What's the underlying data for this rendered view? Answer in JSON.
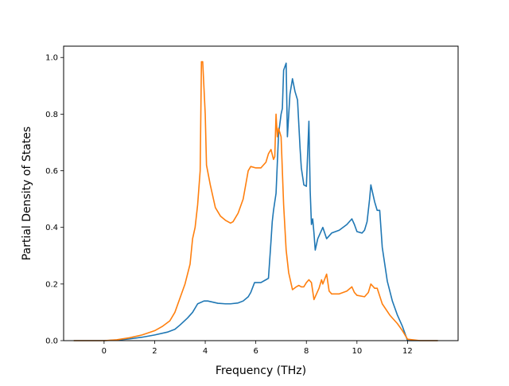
{
  "chart_data": {
    "type": "line",
    "title": "",
    "xlabel": "Frequency (THz)",
    "ylabel": "Partial Density of States",
    "xlim": [
      -1.6,
      14.0
    ],
    "ylim": [
      0.0,
      1.04
    ],
    "xticks": [
      0,
      2,
      4,
      6,
      8,
      10,
      12
    ],
    "yticks": [
      0.0,
      0.2,
      0.4,
      0.6,
      0.8,
      1.0
    ],
    "xtick_labels": [
      "0",
      "2",
      "4",
      "6",
      "8",
      "10",
      "12"
    ],
    "ytick_labels": [
      "0.0",
      "0.2",
      "0.4",
      "0.6",
      "0.8",
      "1.0"
    ],
    "grid": false,
    "legend": null,
    "series": [
      {
        "color": "#1f77b4",
        "x": [
          -1.2,
          0.0,
          0.5,
          1.0,
          1.5,
          2.0,
          2.5,
          2.8,
          3.0,
          3.3,
          3.5,
          3.7,
          3.95,
          4.1,
          4.5,
          4.8,
          5.0,
          5.3,
          5.5,
          5.7,
          5.8,
          5.95,
          6.2,
          6.4,
          6.5,
          6.6,
          6.65,
          6.7,
          6.8,
          6.9,
          7.0,
          7.05,
          7.1,
          7.2,
          7.25,
          7.35,
          7.45,
          7.55,
          7.65,
          7.75,
          7.8,
          7.9,
          8.0,
          8.1,
          8.15,
          8.2,
          8.25,
          8.3,
          8.35,
          8.45,
          8.55,
          8.65,
          8.8,
          9.0,
          9.3,
          9.6,
          9.8,
          9.9,
          10.0,
          10.2,
          10.3,
          10.4,
          10.5,
          10.55,
          10.7,
          10.8,
          10.9,
          11.0,
          11.2,
          11.4,
          11.6,
          11.8,
          12.0,
          12.5,
          13.2
        ],
        "y": [
          0.0,
          0.0,
          0.002,
          0.006,
          0.012,
          0.02,
          0.03,
          0.04,
          0.055,
          0.08,
          0.1,
          0.13,
          0.14,
          0.14,
          0.132,
          0.13,
          0.13,
          0.133,
          0.14,
          0.155,
          0.17,
          0.205,
          0.205,
          0.215,
          0.22,
          0.35,
          0.42,
          0.46,
          0.52,
          0.73,
          0.8,
          0.82,
          0.955,
          0.98,
          0.72,
          0.87,
          0.925,
          0.88,
          0.85,
          0.68,
          0.61,
          0.55,
          0.545,
          0.775,
          0.53,
          0.41,
          0.43,
          0.38,
          0.32,
          0.36,
          0.38,
          0.4,
          0.36,
          0.38,
          0.39,
          0.41,
          0.43,
          0.41,
          0.385,
          0.38,
          0.39,
          0.42,
          0.5,
          0.55,
          0.49,
          0.46,
          0.46,
          0.33,
          0.21,
          0.14,
          0.09,
          0.05,
          0.0,
          0.0,
          0.0
        ]
      },
      {
        "color": "#ff7f0e",
        "x": [
          -1.2,
          0.0,
          0.5,
          1.0,
          1.5,
          2.0,
          2.3,
          2.6,
          2.8,
          3.0,
          3.2,
          3.4,
          3.5,
          3.6,
          3.7,
          3.8,
          3.85,
          3.9,
          4.0,
          4.05,
          4.2,
          4.4,
          4.6,
          4.8,
          4.9,
          5.0,
          5.1,
          5.3,
          5.5,
          5.6,
          5.7,
          5.8,
          6.0,
          6.2,
          6.4,
          6.5,
          6.6,
          6.7,
          6.75,
          6.8,
          6.85,
          6.9,
          7.0,
          7.1,
          7.2,
          7.3,
          7.45,
          7.6,
          7.7,
          7.8,
          7.9,
          8.0,
          8.1,
          8.2,
          8.3,
          8.4,
          8.5,
          8.6,
          8.65,
          8.8,
          8.9,
          9.0,
          9.3,
          9.6,
          9.8,
          9.9,
          10.0,
          10.3,
          10.45,
          10.55,
          10.7,
          10.8,
          11.0,
          11.3,
          11.6,
          11.8,
          12.0,
          12.5,
          13.2
        ],
        "y": [
          0.0,
          0.0,
          0.003,
          0.01,
          0.02,
          0.035,
          0.05,
          0.07,
          0.1,
          0.15,
          0.2,
          0.27,
          0.36,
          0.4,
          0.48,
          0.6,
          0.985,
          0.985,
          0.8,
          0.62,
          0.55,
          0.47,
          0.44,
          0.425,
          0.42,
          0.415,
          0.42,
          0.45,
          0.5,
          0.55,
          0.6,
          0.615,
          0.61,
          0.61,
          0.63,
          0.66,
          0.675,
          0.64,
          0.65,
          0.8,
          0.72,
          0.75,
          0.72,
          0.48,
          0.32,
          0.24,
          0.18,
          0.19,
          0.195,
          0.19,
          0.19,
          0.205,
          0.215,
          0.205,
          0.145,
          0.165,
          0.185,
          0.215,
          0.2,
          0.235,
          0.175,
          0.165,
          0.165,
          0.175,
          0.19,
          0.17,
          0.16,
          0.155,
          0.17,
          0.2,
          0.185,
          0.185,
          0.13,
          0.09,
          0.06,
          0.035,
          0.005,
          0.0,
          0.0
        ]
      }
    ]
  }
}
